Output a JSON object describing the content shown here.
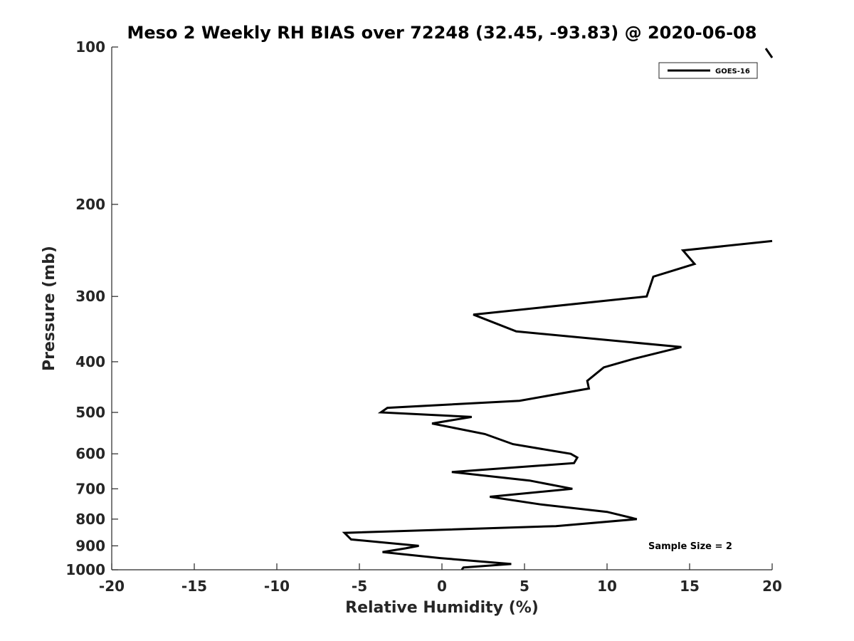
{
  "chart_data": {
    "type": "line",
    "title": "Meso 2 Weekly RH BIAS over 72248 (32.45, -93.83) @ 2020-06-08",
    "xlabel": "Relative Humidity (%)",
    "ylabel": "Pressure (mb)",
    "xlim": [
      -20,
      20
    ],
    "ylim": [
      1000,
      100
    ],
    "y_scale": "log",
    "y_reversed": true,
    "x_ticks": [
      "-20",
      "-15",
      "-10",
      "-5",
      "0",
      "5",
      "10",
      "15",
      "20"
    ],
    "y_ticks": [
      "100",
      "200",
      "300",
      "400",
      "500",
      "600",
      "700",
      "800",
      "900",
      "1000"
    ],
    "grid": false,
    "legend_position": "top-right",
    "annotation": "Sample Size = 2",
    "line_color": "#000000",
    "series": [
      {
        "name": "GOES-16",
        "points": [
          [
            1.2,
            1000
          ],
          [
            1.3,
            990
          ],
          [
            4.2,
            975
          ],
          [
            -0.1,
            950
          ],
          [
            -3.6,
            925
          ],
          [
            -2.2,
            910
          ],
          [
            -1.4,
            900
          ],
          [
            -5.5,
            875
          ],
          [
            -5.9,
            850
          ],
          [
            6.9,
            825
          ],
          [
            11.8,
            800
          ],
          [
            10.0,
            775
          ],
          [
            6.0,
            750
          ],
          [
            2.9,
            725
          ],
          [
            7.9,
            700
          ],
          [
            5.3,
            675
          ],
          [
            0.6,
            650
          ],
          [
            8.0,
            625
          ],
          [
            8.2,
            610
          ],
          [
            7.8,
            600
          ],
          [
            4.3,
            575
          ],
          [
            2.6,
            550
          ],
          [
            -0.6,
            525
          ],
          [
            1.8,
            510
          ],
          [
            -3.7,
            500
          ],
          [
            -3.3,
            490
          ],
          [
            4.7,
            475
          ],
          [
            8.9,
            450
          ],
          [
            8.8,
            435
          ],
          [
            9.8,
            410
          ],
          [
            11.6,
            395
          ],
          [
            14.5,
            375
          ],
          [
            4.5,
            350
          ],
          [
            1.9,
            325
          ],
          [
            12.4,
            300
          ],
          [
            12.8,
            275
          ],
          [
            15.3,
            260
          ],
          [
            14.6,
            245
          ],
          [
            20.0,
            235
          ]
        ]
      }
    ],
    "offscale_segment": [
      [
        19.8,
        101
      ],
      [
        19.5,
        105
      ]
    ]
  }
}
